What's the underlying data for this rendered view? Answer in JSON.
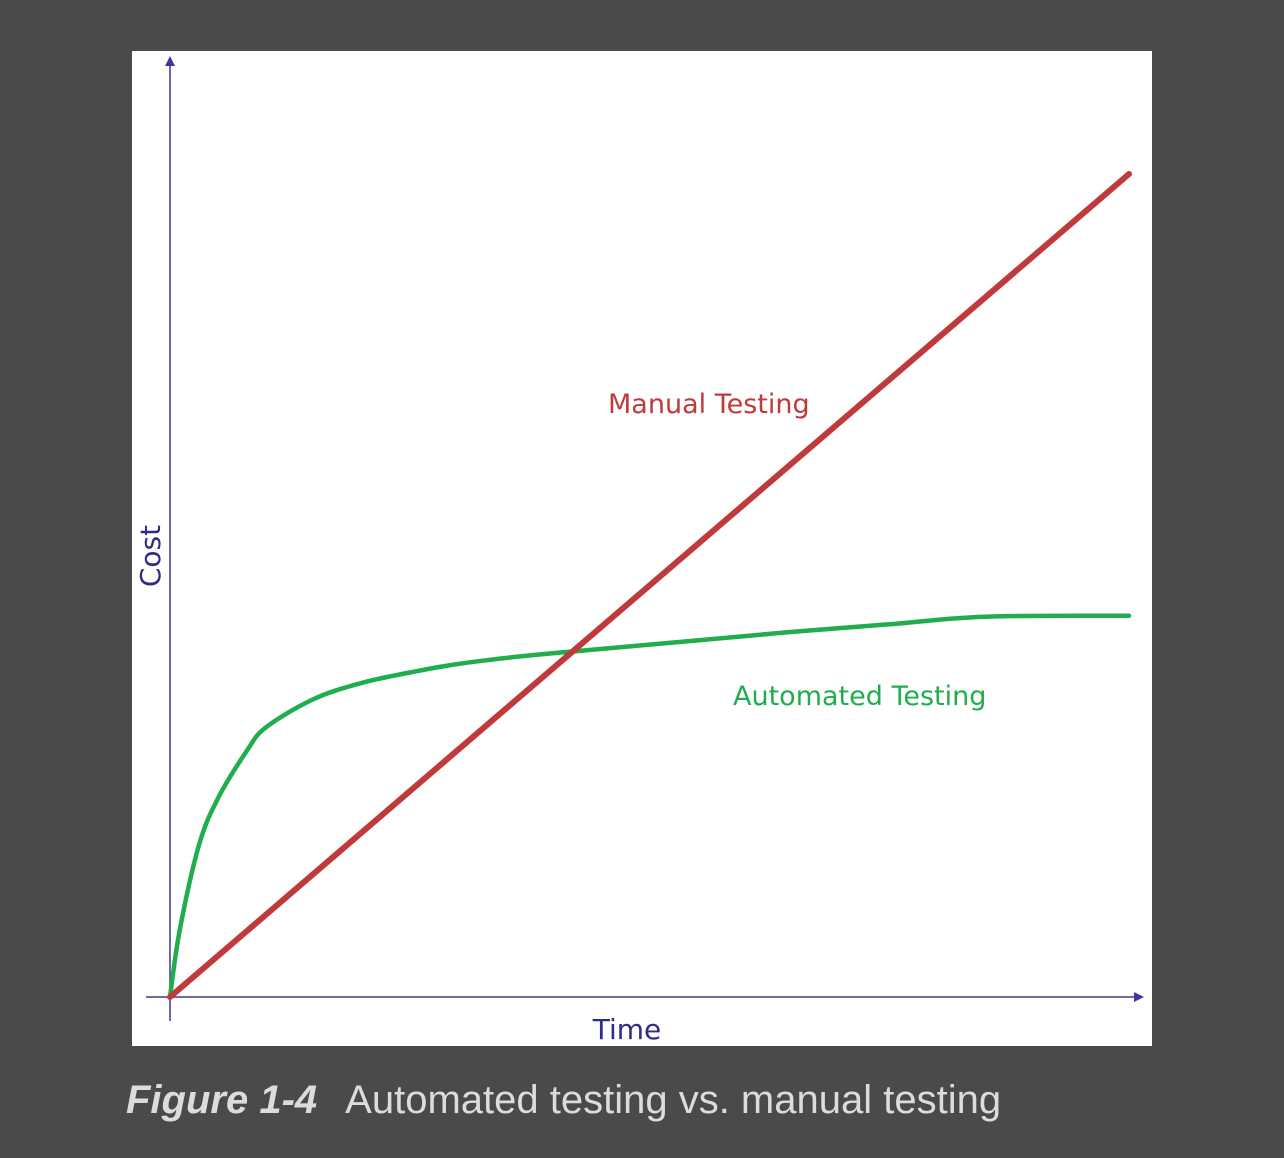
{
  "caption": {
    "number": "Figure 1-4",
    "text": "Automated testing vs. manual testing"
  },
  "colors": {
    "background": "#4a4a4c",
    "axis": "#3b3a96",
    "axis_label": "#2d2c86",
    "manual": "#c0393b",
    "automated": "#1fae4b",
    "caption": "#dcdcdc"
  },
  "chart_data": {
    "type": "line",
    "title": "",
    "xlabel": "Time",
    "ylabel": "Cost",
    "xlim": [
      0,
      100
    ],
    "ylim": [
      0,
      100
    ],
    "grid": false,
    "legend": "none",
    "series": [
      {
        "name": "Manual Testing",
        "x": [
          0,
          100
        ],
        "y": [
          0,
          87
        ]
      },
      {
        "name": "Automated Testing",
        "x": [
          0,
          1,
          3,
          5,
          8,
          10,
          15,
          20,
          25,
          30,
          36.5,
          45,
          55,
          65,
          75,
          85,
          100
        ],
        "y": [
          0,
          7,
          16,
          21,
          26,
          28.5,
          31.5,
          33.2,
          34.3,
          35.2,
          36,
          36.8,
          37.7,
          38.6,
          39.4,
          40.2,
          40.3
        ]
      }
    ]
  }
}
